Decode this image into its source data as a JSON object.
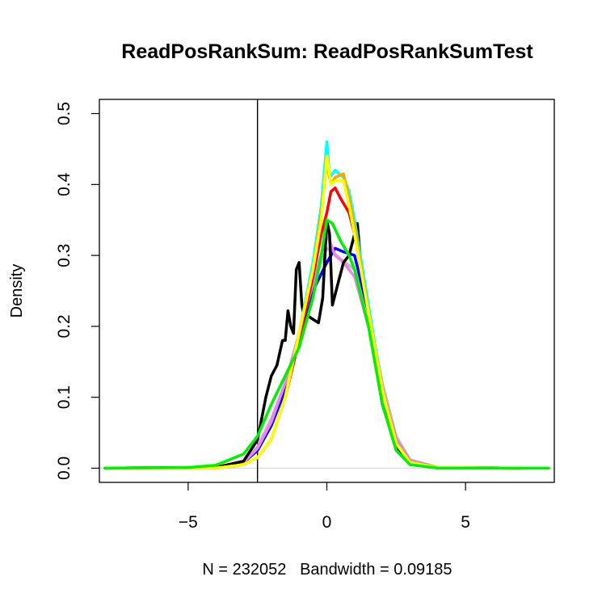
{
  "chart_data": {
    "type": "line",
    "title": "ReadPosRankSum: ReadPosRankSumTest",
    "xlabel": "N = 232052   Bandwidth = 0.09185",
    "ylabel": "Density",
    "xlim": [
      -8.2,
      8.2
    ],
    "ylim": [
      -0.02,
      0.52
    ],
    "x_ticks": [
      -5,
      0,
      5
    ],
    "x_tick_labels": [
      "−5",
      "0",
      "5"
    ],
    "y_ticks": [
      0.0,
      0.1,
      0.2,
      0.3,
      0.4,
      0.5
    ],
    "y_tick_labels": [
      "0.0",
      "0.1",
      "0.2",
      "0.3",
      "0.4",
      "0.5"
    ],
    "vline_x": -2.5,
    "baseline_y": 0,
    "grid": false,
    "legend": "none",
    "series": [
      {
        "color": "#bebebe",
        "x": [
          -8,
          -4,
          -3,
          -2.5,
          -2,
          -1.5,
          -1,
          -0.5,
          0,
          0.2,
          0.5,
          1,
          1.5,
          2,
          2.5,
          3,
          4,
          7
        ],
        "y": [
          0,
          0.001,
          0.01,
          0.03,
          0.07,
          0.12,
          0.19,
          0.26,
          0.31,
          0.305,
          0.295,
          0.28,
          0.22,
          0.12,
          0.045,
          0.012,
          0.001,
          0
        ]
      },
      {
        "color": "#0000ff",
        "x": [
          -8,
          -4,
          -3,
          -2.5,
          -2,
          -1.5,
          -1,
          -0.5,
          0,
          0.3,
          0.6,
          1,
          1.5,
          2,
          2.5,
          3,
          4,
          7
        ],
        "y": [
          0,
          0.001,
          0.008,
          0.025,
          0.06,
          0.11,
          0.18,
          0.25,
          0.29,
          0.31,
          0.305,
          0.3,
          0.22,
          0.11,
          0.04,
          0.01,
          0.001,
          0
        ]
      },
      {
        "color": "#ee82ee",
        "x": [
          -8,
          -4,
          -3,
          -2.5,
          -2,
          -1.5,
          -1,
          -0.5,
          0,
          0.3,
          0.6,
          1,
          1.5,
          2,
          2.5,
          3,
          4,
          7
        ],
        "y": [
          0,
          0.001,
          0.008,
          0.028,
          0.065,
          0.12,
          0.19,
          0.26,
          0.33,
          0.3,
          0.29,
          0.27,
          0.2,
          0.11,
          0.04,
          0.01,
          0.001,
          0
        ]
      },
      {
        "color": "#000000",
        "x": [
          -8,
          -4,
          -3,
          -2.5,
          -2.2,
          -2,
          -1.8,
          -1.6,
          -1.5,
          -1.4,
          -1.3,
          -1.2,
          -1.1,
          -1,
          -0.9,
          -0.8,
          -0.7,
          -0.5,
          -0.3,
          -0.15,
          0,
          0.1,
          0.2,
          0.4,
          0.6,
          0.8,
          1,
          1.1,
          1.2,
          1.4,
          1.7,
          2,
          2.5,
          3,
          4,
          7
        ],
        "y": [
          0,
          0.001,
          0.01,
          0.04,
          0.1,
          0.13,
          0.145,
          0.18,
          0.18,
          0.222,
          0.2,
          0.19,
          0.28,
          0.29,
          0.23,
          0.21,
          0.215,
          0.21,
          0.205,
          0.24,
          0.35,
          0.33,
          0.23,
          0.26,
          0.29,
          0.3,
          0.33,
          0.345,
          0.3,
          0.25,
          0.16,
          0.09,
          0.03,
          0.008,
          0.001,
          0
        ]
      },
      {
        "color": "#ff0000",
        "x": [
          -8,
          -4,
          -3,
          -2.5,
          -2,
          -1.5,
          -1,
          -0.5,
          -0.2,
          0,
          0.15,
          0.3,
          0.5,
          0.8,
          1,
          1.5,
          2,
          2.5,
          3,
          4,
          7
        ],
        "y": [
          0,
          0.0,
          0.005,
          0.015,
          0.04,
          0.1,
          0.18,
          0.27,
          0.33,
          0.36,
          0.39,
          0.395,
          0.38,
          0.36,
          0.33,
          0.22,
          0.11,
          0.035,
          0.008,
          0.001,
          0
        ]
      },
      {
        "color": "#00ffff",
        "x": [
          -8,
          -4,
          -3,
          -2.5,
          -2,
          -1.5,
          -1,
          -0.5,
          -0.2,
          0,
          0.1,
          0.3,
          0.6,
          0.8,
          1,
          1.5,
          2,
          2.5,
          3,
          4,
          7
        ],
        "y": [
          0,
          0.0,
          0.005,
          0.015,
          0.04,
          0.1,
          0.19,
          0.29,
          0.37,
          0.46,
          0.41,
          0.42,
          0.41,
          0.39,
          0.35,
          0.23,
          0.11,
          0.035,
          0.008,
          0.001,
          0
        ]
      },
      {
        "color": "#ffa500",
        "x": [
          -8,
          -4,
          -3,
          -2.5,
          -2,
          -1.5,
          -1,
          -0.5,
          -0.2,
          0,
          0.15,
          0.3,
          0.6,
          0.8,
          1,
          1.5,
          2,
          2.5,
          3,
          4,
          7
        ],
        "y": [
          0,
          0.0,
          0.005,
          0.015,
          0.04,
          0.1,
          0.19,
          0.28,
          0.36,
          0.43,
          0.4,
          0.41,
          0.415,
          0.38,
          0.34,
          0.22,
          0.11,
          0.035,
          0.008,
          0.001,
          0
        ]
      },
      {
        "color": "#ffff00",
        "x": [
          -8,
          -4,
          -3,
          -2.5,
          -2,
          -1.5,
          -1,
          -0.5,
          -0.2,
          0,
          0.15,
          0.3,
          0.6,
          0.8,
          1,
          1.5,
          2,
          2.5,
          3,
          4,
          7
        ],
        "y": [
          0,
          0.0,
          0.005,
          0.015,
          0.04,
          0.1,
          0.19,
          0.28,
          0.35,
          0.44,
          0.4,
          0.405,
          0.405,
          0.37,
          0.33,
          0.22,
          0.11,
          0.035,
          0.008,
          0.001,
          0
        ]
      },
      {
        "color": "#00ee00",
        "x": [
          -8,
          -5,
          -4,
          -3,
          -2.5,
          -2,
          -1.5,
          -1,
          -0.5,
          -0.2,
          0,
          0.2,
          0.5,
          0.8,
          1,
          1.5,
          2,
          2.5,
          3,
          4,
          8
        ],
        "y": [
          0,
          0.001,
          0.004,
          0.02,
          0.045,
          0.09,
          0.13,
          0.17,
          0.24,
          0.3,
          0.35,
          0.345,
          0.32,
          0.3,
          0.28,
          0.2,
          0.09,
          0.025,
          0.005,
          0.0,
          0
        ]
      }
    ]
  }
}
